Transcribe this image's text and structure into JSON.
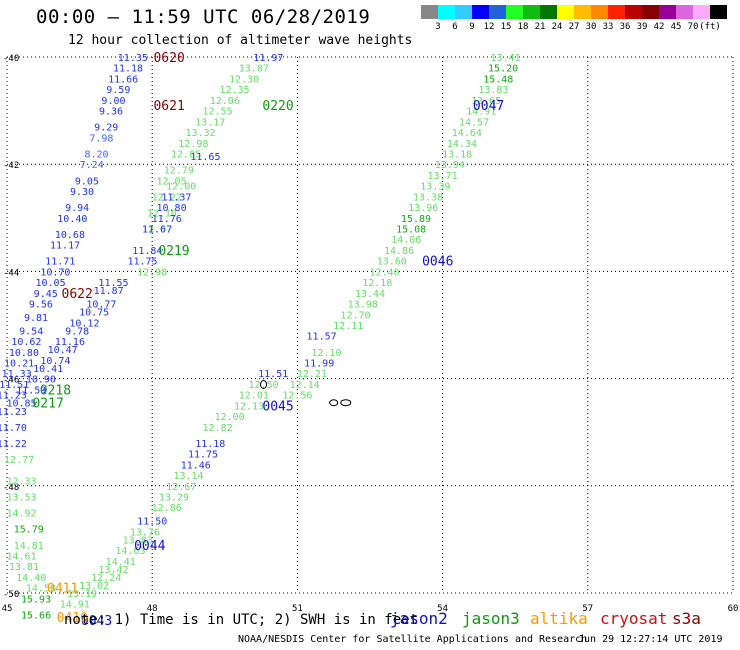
{
  "header": {
    "title": "00:00 – 11:59 UTC 06/28/2019",
    "subtitle": "12 hour collection of altimeter wave heights"
  },
  "colorbar": {
    "colors": [
      "#888888",
      "#00ffff",
      "#33ccff",
      "#0000ff",
      "#1f63d6",
      "#22ff22",
      "#11bb11",
      "#007700",
      "#ffff00",
      "#ffbb00",
      "#ff8800",
      "#ff2200",
      "#bb0000",
      "#880000",
      "#990099",
      "#dd66dd",
      "#ffaaff",
      "#000000"
    ],
    "labels": [
      "3",
      "6",
      "9",
      "12",
      "15",
      "18",
      "21",
      "24",
      "27",
      "30",
      "33",
      "36",
      "39",
      "42",
      "45",
      "70",
      "(ft)"
    ]
  },
  "note": "note:  1) Time is in UTC;  2) SWH is in feet",
  "satellites": [
    {
      "name": "jason2",
      "color": "#1010cc"
    },
    {
      "name": "jason3",
      "color": "#119911"
    },
    {
      "name": "altika",
      "color": "#ff9900"
    },
    {
      "name": "cryosat",
      "color": "#cc1111"
    },
    {
      "name": "s3a",
      "color": "#880000"
    }
  ],
  "credit": "NOAA/NESDIS Center for Satellite Applications and Research",
  "timestamp": "Jun 29 12:27:14 UTC 2019",
  "chart_data": {
    "type": "scatter",
    "title": "00:00 – 11:59 UTC 06/28/2019",
    "subtitle": "12 hour collection of altimeter wave heights",
    "xlabel": "",
    "ylabel": "",
    "xlim": [
      45,
      60
    ],
    "ylim": [
      -50,
      -40
    ],
    "xticks": [
      "45",
      "48",
      "51",
      "54",
      "57",
      "60"
    ],
    "yticks": [
      "-40",
      "-42",
      "-44",
      "-46",
      "-48",
      "-50"
    ],
    "grid": true,
    "legend": "bottom",
    "tracks": [
      {
        "time": "0620",
        "sat": "s3a",
        "label": [
          48.35,
          -40.0
        ],
        "points": [
          {
            "x": 47.6,
            "y": -40.0,
            "v": "11.35"
          },
          {
            "x": 47.5,
            "y": -40.2,
            "v": "11.18"
          },
          {
            "x": 47.4,
            "y": -40.4,
            "v": "11.66"
          },
          {
            "x": 47.3,
            "y": -40.6,
            "v": "9.59"
          },
          {
            "x": 47.2,
            "y": -40.8,
            "v": "9.00"
          },
          {
            "x": 47.15,
            "y": -41.0,
            "v": "9.36"
          },
          {
            "x": 47.05,
            "y": -41.3,
            "v": "9.29"
          },
          {
            "x": 46.95,
            "y": -41.5,
            "v": "7.98"
          },
          {
            "x": 46.85,
            "y": -41.8,
            "v": "8.20"
          },
          {
            "x": 46.75,
            "y": -42.0,
            "v": "7.24"
          }
        ]
      },
      {
        "time": "0621",
        "sat": "s3a",
        "label": [
          48.35,
          -40.9
        ],
        "points": [
          {
            "x": 46.65,
            "y": -42.3,
            "v": "9.05"
          },
          {
            "x": 46.55,
            "y": -42.5,
            "v": "9.30"
          },
          {
            "x": 46.45,
            "y": -42.8,
            "v": "9.94"
          },
          {
            "x": 46.35,
            "y": -43.0,
            "v": "10.40"
          },
          {
            "x": 46.3,
            "y": -43.3,
            "v": "10.68"
          },
          {
            "x": 46.2,
            "y": -43.5,
            "v": "11.17"
          },
          {
            "x": 46.1,
            "y": -43.8,
            "v": "11.71"
          },
          {
            "x": 46.0,
            "y": -44.0,
            "v": "10.70"
          },
          {
            "x": 45.9,
            "y": -44.2,
            "v": "10.05"
          },
          {
            "x": 45.8,
            "y": -44.4,
            "v": "9.45"
          },
          {
            "x": 45.7,
            "y": -44.6,
            "v": "9.56"
          },
          {
            "x": 45.6,
            "y": -44.85,
            "v": "9.81"
          },
          {
            "x": 45.5,
            "y": -45.1,
            "v": "9.54"
          },
          {
            "x": 45.4,
            "y": -45.3,
            "v": "10.62"
          },
          {
            "x": 45.35,
            "y": -45.5,
            "v": "10.80"
          },
          {
            "x": 45.25,
            "y": -45.7,
            "v": "10.21"
          },
          {
            "x": 45.2,
            "y": -45.9,
            "v": "11.33"
          },
          {
            "x": 45.15,
            "y": -46.1,
            "v": "11.51"
          },
          {
            "x": 45.1,
            "y": -46.3,
            "v": "11.23"
          },
          {
            "x": 45.1,
            "y": -46.6,
            "v": "11.23"
          },
          {
            "x": 45.1,
            "y": -46.9,
            "v": "11.70"
          },
          {
            "x": 45.1,
            "y": -47.2,
            "v": "11.22"
          }
        ]
      },
      {
        "time": "0622",
        "sat": "s3a",
        "label": [
          46.45,
          -44.4
        ],
        "points": [
          {
            "x": 47.2,
            "y": -44.2,
            "v": "11.55"
          },
          {
            "x": 47.1,
            "y": -44.35,
            "v": "11.87"
          },
          {
            "x": 46.95,
            "y": -44.6,
            "v": "10.77"
          },
          {
            "x": 46.8,
            "y": -44.75,
            "v": "10.75"
          },
          {
            "x": 46.6,
            "y": -44.95,
            "v": "10.12"
          },
          {
            "x": 46.45,
            "y": -45.1,
            "v": "9.78"
          },
          {
            "x": 46.3,
            "y": -45.3,
            "v": "11.16"
          },
          {
            "x": 46.15,
            "y": -45.45,
            "v": "10.47"
          },
          {
            "x": 46.0,
            "y": -45.65,
            "v": "10.74"
          },
          {
            "x": 45.85,
            "y": -45.8,
            "v": "10.41"
          },
          {
            "x": 45.7,
            "y": -46.0,
            "v": "10.90"
          },
          {
            "x": 45.5,
            "y": -46.2,
            "v": "11.59"
          },
          {
            "x": 45.3,
            "y": -46.45,
            "v": "10.85"
          }
        ]
      },
      {
        "time": "0220",
        "sat": "jason3",
        "label": [
          50.6,
          -40.9
        ],
        "points": [
          {
            "x": 50.4,
            "y": -40.0,
            "v": "11.97"
          },
          {
            "x": 50.1,
            "y": -40.2,
            "v": "13.87"
          },
          {
            "x": 49.9,
            "y": -40.4,
            "v": "12.30"
          },
          {
            "x": 49.7,
            "y": -40.6,
            "v": "12.35"
          },
          {
            "x": 49.5,
            "y": -40.8,
            "v": "12.06"
          },
          {
            "x": 49.35,
            "y": -41.0,
            "v": "12.55"
          },
          {
            "x": 49.2,
            "y": -41.2,
            "v": "13.17"
          },
          {
            "x": 49.0,
            "y": -41.4,
            "v": "13.32"
          },
          {
            "x": 48.85,
            "y": -41.6,
            "v": "12.98"
          },
          {
            "x": 48.7,
            "y": -41.8,
            "v": "12.85"
          },
          {
            "x": 48.55,
            "y": -42.1,
            "v": "12.79"
          },
          {
            "x": 48.4,
            "y": -42.3,
            "v": "12.05"
          },
          {
            "x": 48.3,
            "y": -42.6,
            "v": "12.22"
          },
          {
            "x": 48.2,
            "y": -42.9,
            "v": "12.10"
          },
          {
            "x": 48.1,
            "y": -43.2,
            "v": "12.07"
          },
          {
            "x": 48.0,
            "y": -44.0,
            "v": "12.98"
          }
        ]
      },
      {
        "time": "0219",
        "sat": "jason3",
        "label": [
          48.45,
          -43.6
        ],
        "points": [
          {
            "x": 49.1,
            "y": -41.85,
            "v": "11.65"
          },
          {
            "x": 48.6,
            "y": -42.4,
            "v": "12.00"
          },
          {
            "x": 48.5,
            "y": -42.6,
            "v": "11.37"
          },
          {
            "x": 48.4,
            "y": -42.8,
            "v": "10.80"
          },
          {
            "x": 48.3,
            "y": -43.0,
            "v": "11.76"
          },
          {
            "x": 48.1,
            "y": -43.2,
            "v": "11.67"
          },
          {
            "x": 47.9,
            "y": -43.6,
            "v": "11.84"
          },
          {
            "x": 47.8,
            "y": -43.8,
            "v": "11.75"
          }
        ]
      },
      {
        "time": "0218",
        "sat": "jason3",
        "label": [
          46.0,
          -46.2
        ],
        "points": [
          {
            "x": 45.25,
            "y": -47.5,
            "v": "12.77"
          },
          {
            "x": 45.3,
            "y": -47.9,
            "v": "12.33"
          },
          {
            "x": 45.3,
            "y": -48.2,
            "v": "13.53"
          },
          {
            "x": 45.3,
            "y": -48.5,
            "v": "14.92"
          },
          {
            "x": 45.45,
            "y": -48.8,
            "v": "15.79"
          },
          {
            "x": 45.45,
            "y": -49.1,
            "v": "14.81"
          },
          {
            "x": 45.3,
            "y": -49.3,
            "v": "14.61"
          },
          {
            "x": 45.35,
            "y": -49.5,
            "v": "13.81"
          },
          {
            "x": 45.5,
            "y": -49.7,
            "v": "14.40"
          },
          {
            "x": 45.7,
            "y": -49.9,
            "v": "14.58"
          }
        ]
      },
      {
        "time": "0217",
        "sat": "jason3",
        "label": [
          45.85,
          -46.45
        ],
        "points": []
      },
      {
        "time": "0047",
        "sat": "jason2",
        "label": [
          54.95,
          -40.9
        ],
        "points": [
          {
            "x": 55.3,
            "y": -40.0,
            "v": "13.41"
          },
          {
            "x": 55.25,
            "y": -40.2,
            "v": "15.20"
          },
          {
            "x": 55.15,
            "y": -40.4,
            "v": "15.48"
          },
          {
            "x": 55.05,
            "y": -40.6,
            "v": "13.83"
          },
          {
            "x": 54.9,
            "y": -40.8,
            "v": "13.65"
          },
          {
            "x": 54.8,
            "y": -41.0,
            "v": "14.91"
          },
          {
            "x": 54.65,
            "y": -41.2,
            "v": "14.57"
          },
          {
            "x": 54.5,
            "y": -41.4,
            "v": "14.64"
          },
          {
            "x": 54.4,
            "y": -41.6,
            "v": "14.34"
          },
          {
            "x": 54.3,
            "y": -41.8,
            "v": "13.18"
          },
          {
            "x": 54.15,
            "y": -42.0,
            "v": "13.94"
          },
          {
            "x": 54.0,
            "y": -42.2,
            "v": "13.71"
          },
          {
            "x": 53.85,
            "y": -42.4,
            "v": "13.39"
          },
          {
            "x": 53.7,
            "y": -42.6,
            "v": "13.38"
          },
          {
            "x": 53.6,
            "y": -42.8,
            "v": "13.96"
          }
        ]
      },
      {
        "time": "0046",
        "sat": "jason2",
        "label": [
          53.9,
          -43.8
        ],
        "points": [
          {
            "x": 53.45,
            "y": -43.0,
            "v": "15.89"
          },
          {
            "x": 53.35,
            "y": -43.2,
            "v": "15.08"
          },
          {
            "x": 53.25,
            "y": -43.4,
            "v": "14.06"
          },
          {
            "x": 53.1,
            "y": -43.6,
            "v": "14.86"
          },
          {
            "x": 52.95,
            "y": -43.8,
            "v": "13.60"
          },
          {
            "x": 52.8,
            "y": -44.0,
            "v": "12.40"
          },
          {
            "x": 52.65,
            "y": -44.2,
            "v": "12.18"
          },
          {
            "x": 52.5,
            "y": -44.4,
            "v": "13.44"
          },
          {
            "x": 52.35,
            "y": -44.6,
            "v": "13.98"
          },
          {
            "x": 52.2,
            "y": -44.8,
            "v": "12.70"
          },
          {
            "x": 52.05,
            "y": -45.0,
            "v": "12.11"
          },
          {
            "x": 51.5,
            "y": -45.2,
            "v": "11.57"
          },
          {
            "x": 51.6,
            "y": -45.5,
            "v": "12.10"
          },
          {
            "x": 51.45,
            "y": -45.7,
            "v": "11.99"
          },
          {
            "x": 51.3,
            "y": -45.9,
            "v": "12.21"
          },
          {
            "x": 51.15,
            "y": -46.1,
            "v": "12.14"
          },
          {
            "x": 51.0,
            "y": -46.3,
            "v": "12.56"
          }
        ]
      },
      {
        "time": "0045",
        "sat": "jason2",
        "label": [
          50.6,
          -46.5
        ],
        "points": [
          {
            "x": 50.5,
            "y": -45.9,
            "v": "11.51"
          },
          {
            "x": 50.3,
            "y": -46.1,
            "v": "12.50"
          },
          {
            "x": 50.1,
            "y": -46.3,
            "v": "12.01"
          },
          {
            "x": 50.0,
            "y": -46.5,
            "v": "12.13"
          },
          {
            "x": 49.6,
            "y": -46.7,
            "v": "12.00"
          },
          {
            "x": 49.35,
            "y": -46.9,
            "v": "12.82"
          },
          {
            "x": 49.2,
            "y": -47.2,
            "v": "11.18"
          },
          {
            "x": 49.05,
            "y": -47.4,
            "v": "11.75"
          },
          {
            "x": 48.9,
            "y": -47.6,
            "v": "11.46"
          },
          {
            "x": 48.75,
            "y": -47.8,
            "v": "13.14"
          },
          {
            "x": 48.6,
            "y": -48.0,
            "v": "12.67"
          },
          {
            "x": 48.45,
            "y": -48.2,
            "v": "13.29"
          },
          {
            "x": 48.3,
            "y": -48.4,
            "v": "12.86"
          }
        ]
      },
      {
        "time": "0044",
        "sat": "jason2",
        "label": [
          47.95,
          -49.1
        ],
        "points": [
          {
            "x": 48.0,
            "y": -48.65,
            "v": "11.50"
          },
          {
            "x": 47.85,
            "y": -48.85,
            "v": "13.76"
          },
          {
            "x": 47.7,
            "y": -49.0,
            "v": "13.83"
          },
          {
            "x": 47.55,
            "y": -49.2,
            "v": "14.63"
          },
          {
            "x": 47.35,
            "y": -49.4,
            "v": "14.41"
          },
          {
            "x": 47.2,
            "y": -49.55,
            "v": "13.42"
          },
          {
            "x": 47.05,
            "y": -49.7,
            "v": "12.24"
          },
          {
            "x": 46.8,
            "y": -49.85,
            "v": "13.02"
          },
          {
            "x": 46.55,
            "y": -50.0,
            "v": "13.19"
          },
          {
            "x": 46.4,
            "y": -50.2,
            "v": "14.91"
          }
        ]
      },
      {
        "time": "0043",
        "sat": "jason2",
        "label": [
          46.85,
          -50.5
        ],
        "points": []
      },
      {
        "time": "0411",
        "sat": "altika",
        "label": [
          46.15,
          -49.9
        ],
        "points": [
          {
            "x": 45.6,
            "y": -50.1,
            "v": "15.93"
          },
          {
            "x": 45.6,
            "y": -50.4,
            "v": "15.66"
          }
        ]
      },
      {
        "time": "0410",
        "sat": "altika",
        "label": [
          46.35,
          -50.45
        ],
        "points": []
      }
    ]
  }
}
